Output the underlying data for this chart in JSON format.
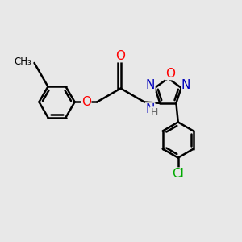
{
  "background_color": "#e8e8e8",
  "bond_color": "#000000",
  "bond_width": 1.8,
  "atom_colors": {
    "O": "#ff0000",
    "N": "#0000bb",
    "Cl": "#00aa00",
    "H": "#666666"
  },
  "font_size": 10
}
